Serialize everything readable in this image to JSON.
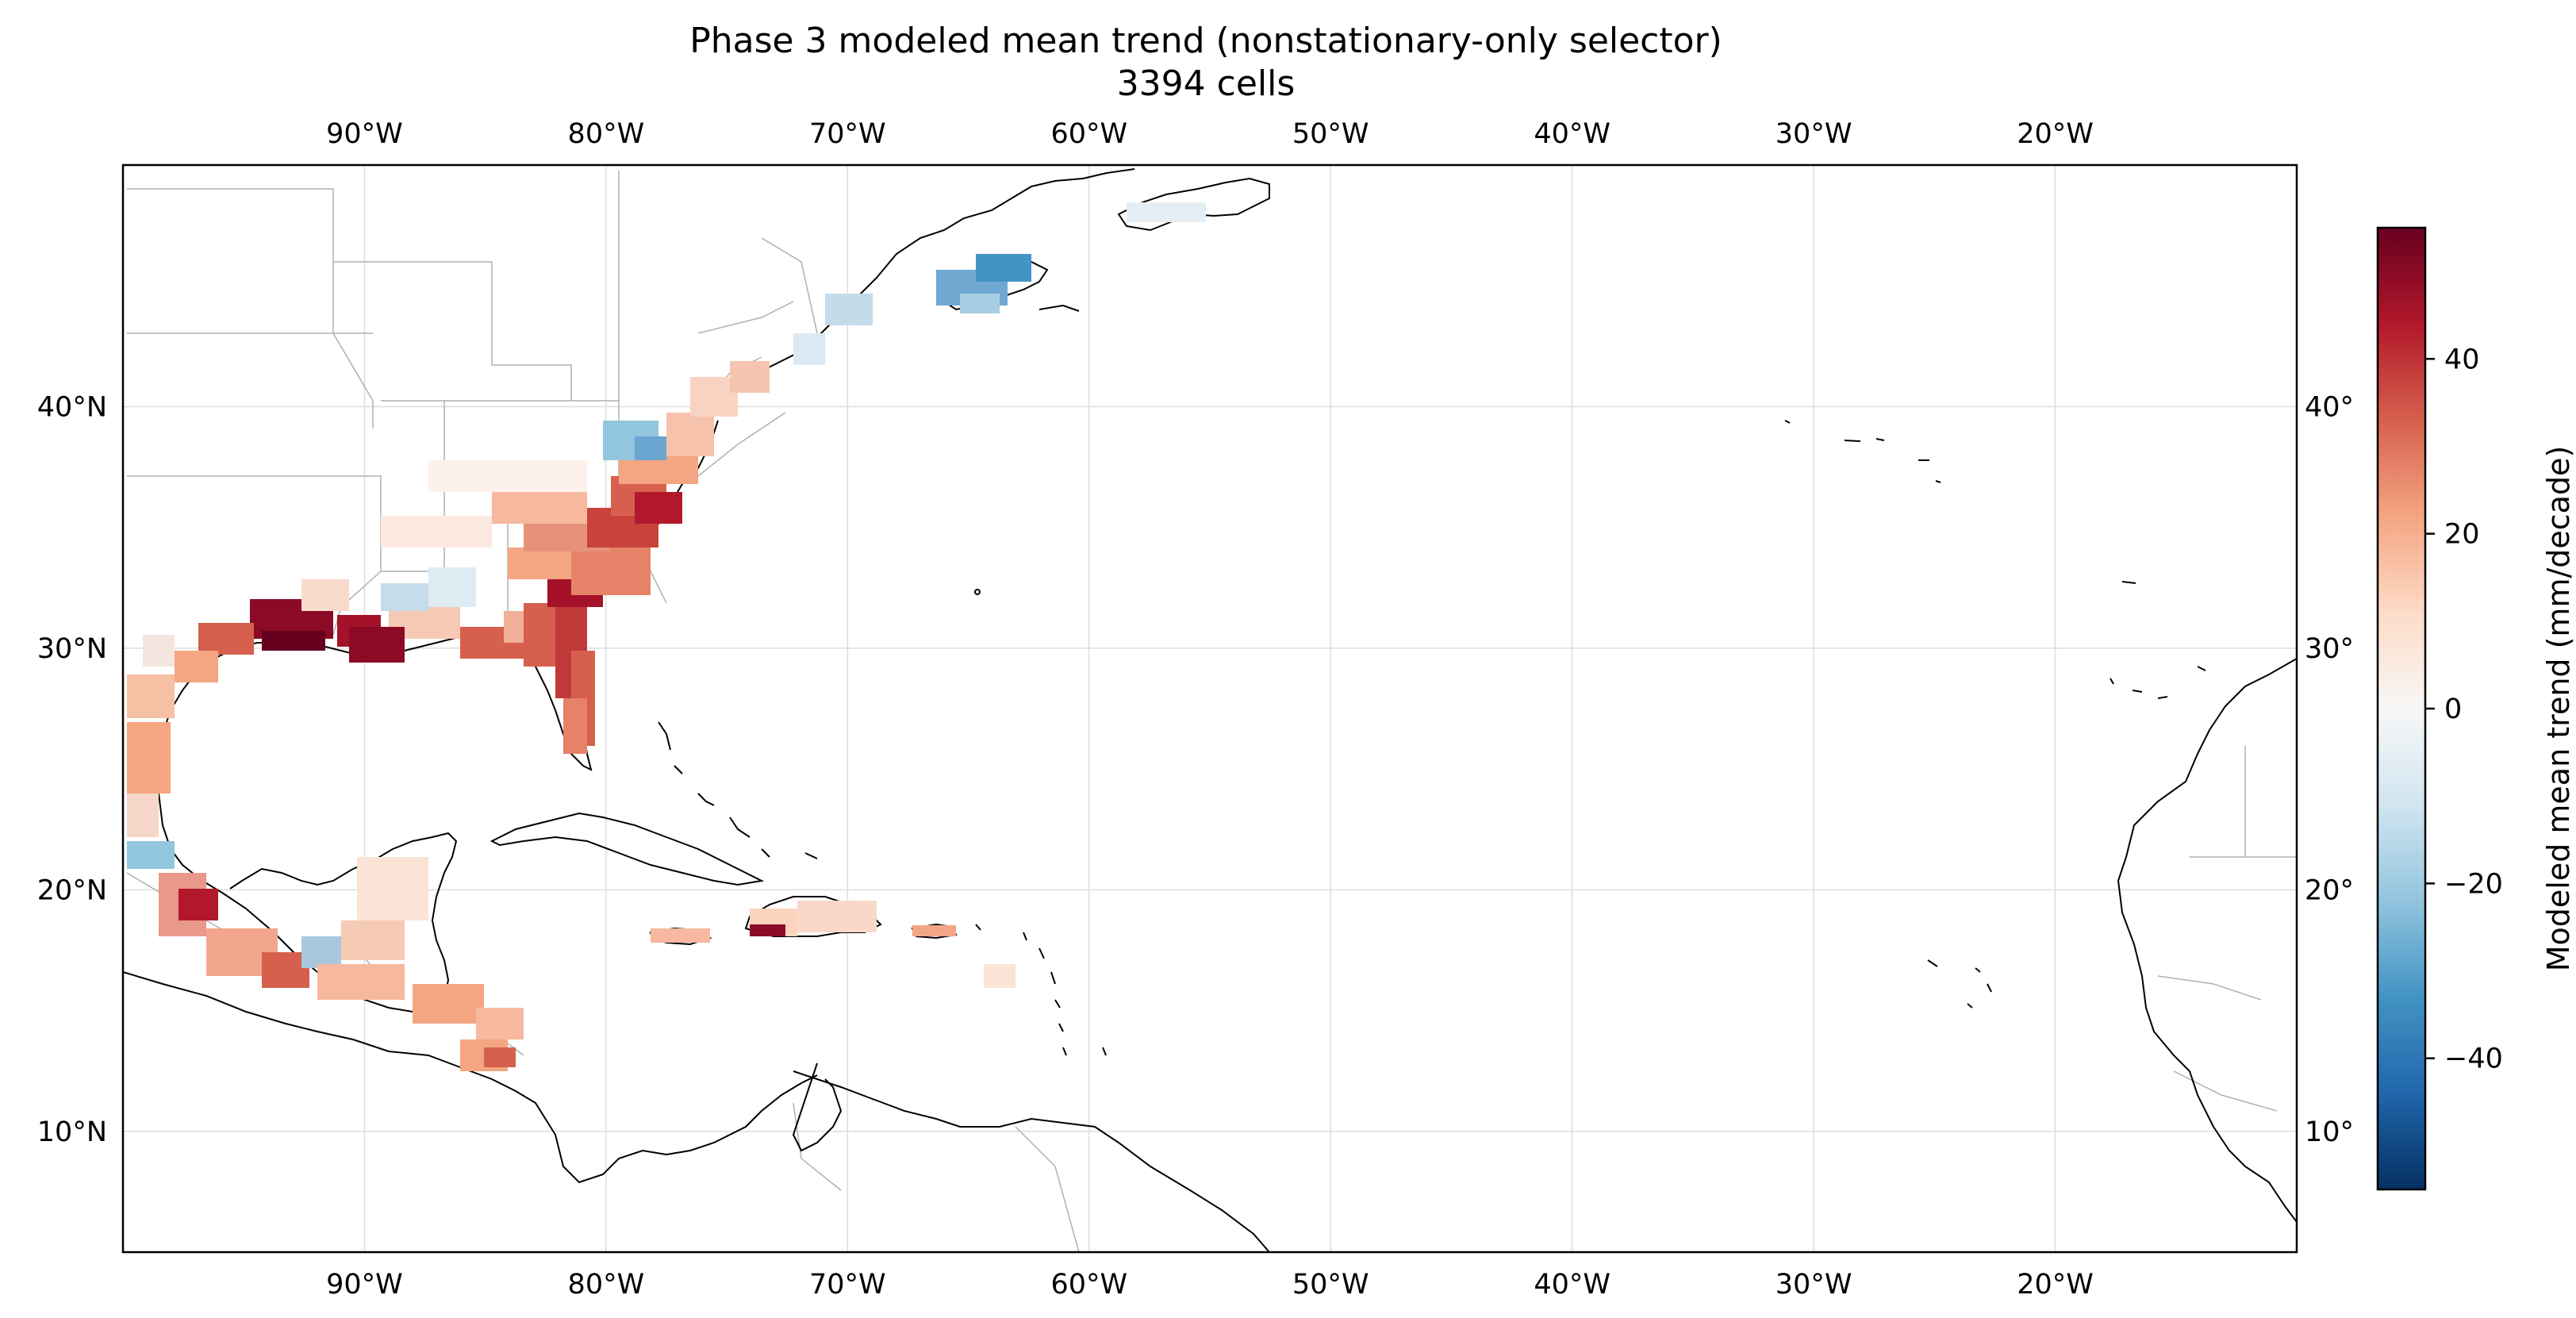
{
  "figure": {
    "title": "Phase 3 modeled mean trend (nonstationary-only selector)",
    "subtitle": "3394 cells"
  },
  "map": {
    "lon_range": [
      -100,
      -10
    ],
    "lat_range": [
      5,
      50
    ],
    "x_ticks": [
      -90,
      -80,
      -70,
      -60,
      -50,
      -40,
      -30,
      -20
    ],
    "x_tick_labels": [
      "90°W",
      "80°W",
      "70°W",
      "60°W",
      "50°W",
      "40°W",
      "30°W",
      "20°W"
    ],
    "y_ticks": [
      10,
      20,
      30,
      40
    ],
    "y_tick_labels_left": [
      "10°N",
      "20°N",
      "30°N",
      "40°N"
    ],
    "y_tick_labels_right": [
      "10°",
      "20°",
      "30°",
      "40°"
    ],
    "gridlines": true
  },
  "colorbar": {
    "label": "Modeled mean trend (mm/decade)",
    "colormap": "RdBu_r",
    "range": [
      -55,
      55
    ],
    "ticks": [
      40,
      20,
      0,
      -20,
      -40
    ],
    "tick_labels": [
      "40",
      "20",
      "0",
      "−20",
      "−40"
    ],
    "colors": [
      "#053061",
      "#2166ac",
      "#4393c3",
      "#92c5de",
      "#d1e5f0",
      "#f7f7f7",
      "#fddbc7",
      "#f4a582",
      "#d6604d",
      "#b2182b",
      "#67001f"
    ]
  },
  "chart_data": {
    "type": "heatmap",
    "title": "Phase 3 modeled mean trend (nonstationary-only selector)",
    "subtitle": "3394 cells",
    "xlabel": "",
    "ylabel": "",
    "xlim": [
      -100,
      -10
    ],
    "ylim": [
      5,
      50
    ],
    "colorbar_label": "Modeled mean trend (mm/decade)",
    "value_range": [
      -55,
      55
    ],
    "cell_count": 3394,
    "regions": [
      {
        "lon": [
          -95,
          -92
        ],
        "lat": [
          29,
          31
        ],
        "value": 55
      },
      {
        "lon": [
          -92,
          -88
        ],
        "lat": [
          29.5,
          30.5
        ],
        "value": 50
      },
      {
        "lon": [
          -83,
          -80
        ],
        "lat": [
          28,
          31
        ],
        "value": 35
      },
      {
        "lon": [
          -82,
          -79
        ],
        "lat": [
          32,
          36
        ],
        "value": 30
      },
      {
        "lon": [
          -81,
          -80.5
        ],
        "lat": [
          25.5,
          28
        ],
        "value": 25
      },
      {
        "lon": [
          -90,
          -87
        ],
        "lat": [
          31,
          33
        ],
        "value": -8
      },
      {
        "lon": [
          -78,
          -75
        ],
        "lat": [
          37,
          40
        ],
        "value": -15
      },
      {
        "lon": [
          -66,
          -60
        ],
        "lat": [
          44,
          46
        ],
        "value": -20
      },
      {
        "lon": [
          -100,
          -97
        ],
        "lat": [
          21,
          23
        ],
        "value": -30
      },
      {
        "lon": [
          -98,
          -95
        ],
        "lat": [
          17,
          21
        ],
        "value": 25
      },
      {
        "lon": [
          -92,
          -88
        ],
        "lat": [
          16,
          20
        ],
        "value": 15
      },
      {
        "lon": [
          -88,
          -84
        ],
        "lat": [
          14,
          17
        ],
        "value": 20
      },
      {
        "lon": [
          -78,
          -76
        ],
        "lat": [
          18,
          18.5
        ],
        "value": 12
      },
      {
        "lon": [
          -74,
          -72
        ],
        "lat": [
          18.3,
          19
        ],
        "value": 45
      },
      {
        "lon": [
          -72,
          -68
        ],
        "lat": [
          18.5,
          20
        ],
        "value": 10
      },
      {
        "lon": [
          -67,
          -65.5
        ],
        "lat": [
          18,
          18.5
        ],
        "value": 15
      }
    ]
  }
}
